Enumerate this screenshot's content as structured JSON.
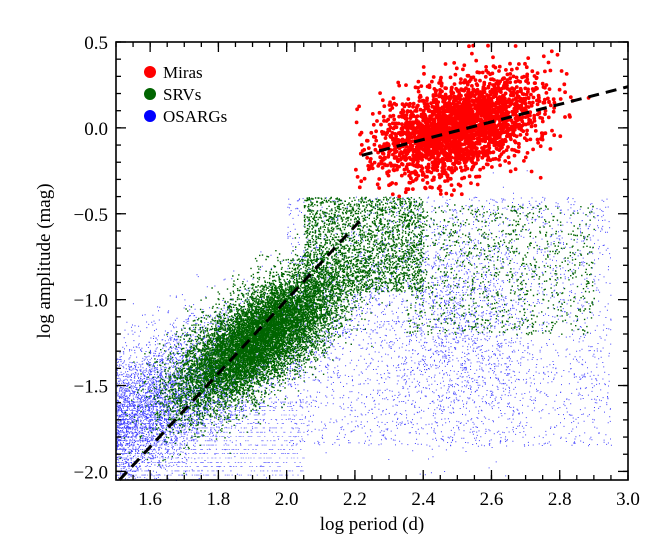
{
  "chart_data": {
    "type": "scatter",
    "title": "",
    "xlabel": "log period (d)",
    "ylabel": "log amplitude (mag)",
    "xlim": [
      1.5,
      3.0
    ],
    "ylim": [
      -2.05,
      0.5
    ],
    "x_ticks": [
      {
        "value": 1.6,
        "label": "1.6"
      },
      {
        "value": 1.8,
        "label": "1.8"
      },
      {
        "value": 2.0,
        "label": "2.0"
      },
      {
        "value": 2.2,
        "label": "2.2"
      },
      {
        "value": 2.4,
        "label": "2.4"
      },
      {
        "value": 2.6,
        "label": "2.6"
      },
      {
        "value": 2.8,
        "label": "2.8"
      },
      {
        "value": 3.0,
        "label": "3.0"
      }
    ],
    "y_ticks": [
      {
        "value": 0.5,
        "label": "0.5"
      },
      {
        "value": 0.0,
        "label": "0.0"
      },
      {
        "value": -0.5,
        "label": "−0.5"
      },
      {
        "value": -1.0,
        "label": "−1.0"
      },
      {
        "value": -1.5,
        "label": "−1.5"
      },
      {
        "value": -2.0,
        "label": "−2.0"
      }
    ],
    "legend": {
      "position": "top-left",
      "entries": [
        {
          "label": "Miras",
          "color": "#ff0000"
        },
        {
          "label": "SRVs",
          "color": "#006400"
        },
        {
          "label": "OSARGs",
          "color": "#0000ff"
        }
      ]
    },
    "series": [
      {
        "name": "Miras",
        "color": "#ff0000",
        "marker": "filled circle (large)",
        "center": [
          2.5,
          0.0
        ],
        "x_range": [
          2.2,
          2.97
        ],
        "y_range": [
          -0.4,
          0.47
        ],
        "trend_slope": 0.6,
        "approx_points": 2500
      },
      {
        "name": "SRVs",
        "color": "#006400",
        "marker": "dot (small)",
        "center": [
          1.92,
          -1.2
        ],
        "x_range": [
          1.5,
          2.9
        ],
        "y_range": [
          -1.65,
          -0.38
        ],
        "trend_slope": 2.7,
        "approx_points": 30000
      },
      {
        "name": "OSARGs",
        "color": "#0000ff",
        "marker": "dot (tiny)",
        "center": [
          1.75,
          -1.65
        ],
        "x_range": [
          1.5,
          2.95
        ],
        "y_range": [
          -2.05,
          -0.35
        ],
        "trend_slope": 0.9,
        "approx_points": 25000
      }
    ],
    "fit_lines": [
      {
        "name": "Miras fit",
        "style": "dashed",
        "x": [
          2.22,
          3.0
        ],
        "y": [
          -0.16,
          0.24
        ]
      },
      {
        "name": "SRVs/OSARGs fit",
        "style": "dashed",
        "x": [
          1.51,
          2.22
        ],
        "y": [
          -2.05,
          -0.53
        ]
      }
    ],
    "grid": false
  }
}
